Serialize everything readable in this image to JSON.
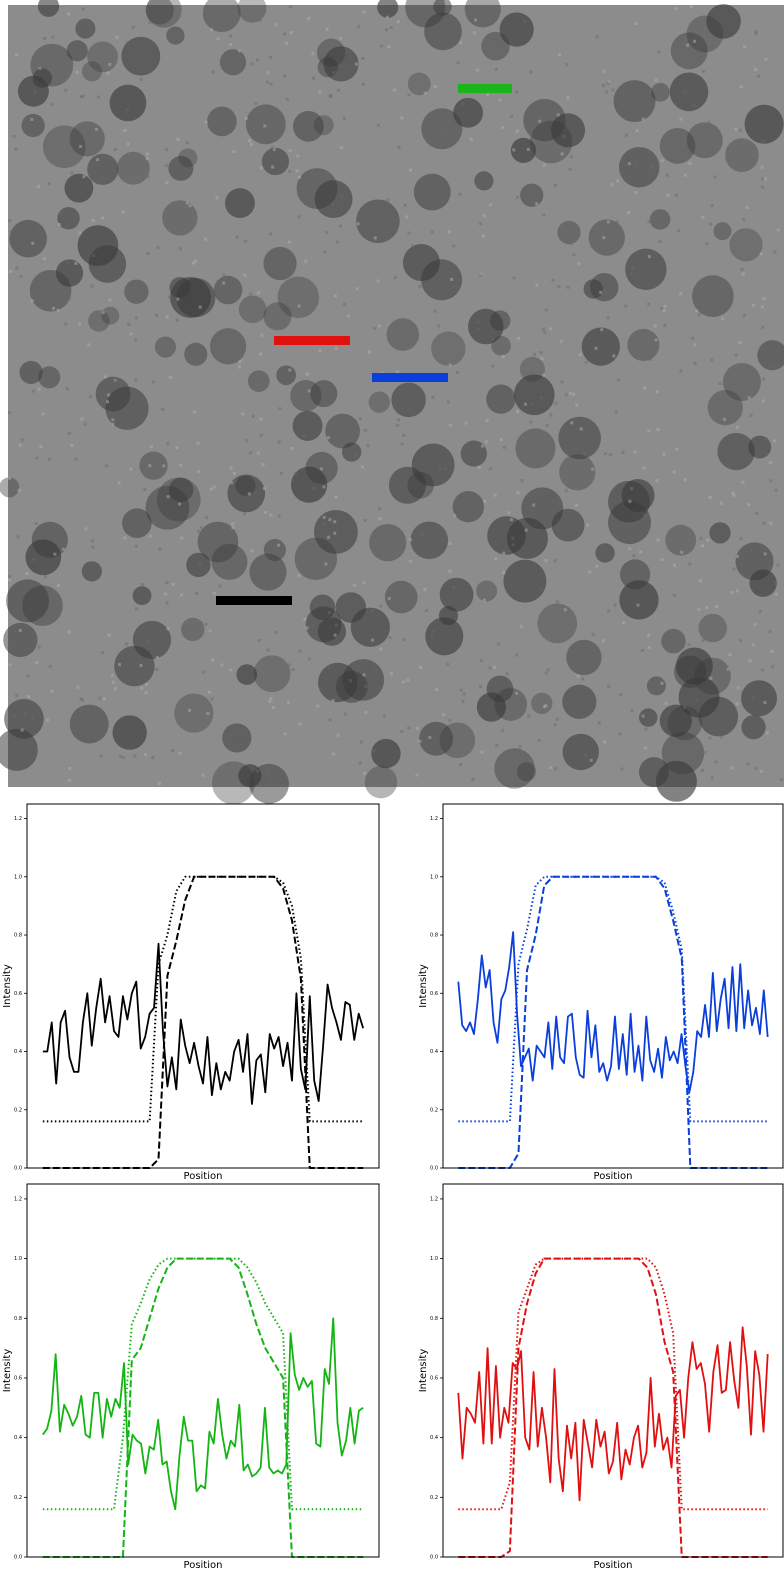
{
  "chart_data": [
    {
      "type": "line",
      "xlabel": "Position",
      "ylabel": "Intensity",
      "ylim": [
        0,
        1.25
      ],
      "yticks": [
        {
          "value": 0,
          "label": "0.0"
        },
        {
          "value": 0.2,
          "label": "0.2"
        },
        {
          "value": 0.4,
          "label": "0.4"
        },
        {
          "value": 0.6,
          "label": "0.6"
        },
        {
          "value": 0.8,
          "label": "0.8"
        },
        {
          "value": 1,
          "label": "1.0"
        },
        {
          "value": 1.2,
          "label": "1.2"
        }
      ],
      "series": [
        {
          "color": "#000000",
          "style": "solid",
          "values": [
            0.4,
            0.4,
            0.5,
            0.29,
            0.5,
            0.54,
            0.38,
            0.33,
            0.33,
            0.5,
            0.6,
            0.42,
            0.55,
            0.65,
            0.5,
            0.59,
            0.47,
            0.45,
            0.59,
            0.51,
            0.6,
            0.64,
            0.41,
            0.45,
            0.53,
            0.55,
            0.77,
            0.47,
            0.28,
            0.38,
            0.27,
            0.51,
            0.42,
            0.36,
            0.43,
            0.35,
            0.29,
            0.45,
            0.25,
            0.36,
            0.27,
            0.33,
            0.3,
            0.4,
            0.44,
            0.33,
            0.46,
            0.22,
            0.37,
            0.39,
            0.26,
            0.46,
            0.41,
            0.45,
            0.35,
            0.43,
            0.3,
            0.6,
            0.34,
            0.27,
            0.59,
            0.3,
            0.23,
            0.42,
            0.63,
            0.55,
            0.5,
            0.44,
            0.57,
            0.56,
            0.44,
            0.53,
            0.48
          ]
        },
        {
          "color": "#000000",
          "style": "dashed",
          "values": [
            0,
            0,
            0,
            0,
            0,
            0,
            0,
            0,
            0,
            0,
            0,
            0,
            0,
            0.03,
            0.66,
            0.78,
            0.92,
            1,
            1,
            1,
            1,
            1,
            1,
            1,
            1,
            1,
            1,
            0.96,
            0.85,
            0.65,
            0,
            0,
            0,
            0,
            0,
            0,
            0
          ]
        },
        {
          "color": "#000000",
          "style": "dotted",
          "values": [
            0.16,
            0.16,
            0.16,
            0.16,
            0.16,
            0.16,
            0.16,
            0.16,
            0.16,
            0.16,
            0.16,
            0.16,
            0.16,
            0.7,
            0.8,
            0.95,
            1,
            1,
            1,
            1,
            1,
            1,
            1,
            1,
            1,
            1,
            1,
            0.98,
            0.9,
            0.72,
            0.16,
            0.16,
            0.16,
            0.16,
            0.16,
            0.16,
            0.16
          ]
        }
      ]
    },
    {
      "type": "line",
      "xlabel": "Position",
      "ylabel": "Intensity",
      "ylim": [
        0,
        1.25
      ],
      "yticks": [
        {
          "value": 0,
          "label": "0.0"
        },
        {
          "value": 0.2,
          "label": "0.2"
        },
        {
          "value": 0.4,
          "label": "0.4"
        },
        {
          "value": 0.6,
          "label": "0.6"
        },
        {
          "value": 0.8,
          "label": "0.8"
        },
        {
          "value": 1,
          "label": "1.0"
        },
        {
          "value": 1.2,
          "label": "1.2"
        }
      ],
      "series": [
        {
          "color": "#0a3fdc",
          "style": "solid",
          "values": [
            0.64,
            0.49,
            0.47,
            0.5,
            0.46,
            0.58,
            0.73,
            0.62,
            0.68,
            0.5,
            0.43,
            0.58,
            0.61,
            0.69,
            0.81,
            0.53,
            0.35,
            0.38,
            0.41,
            0.3,
            0.42,
            0.4,
            0.38,
            0.5,
            0.34,
            0.52,
            0.38,
            0.36,
            0.52,
            0.53,
            0.38,
            0.32,
            0.31,
            0.54,
            0.38,
            0.49,
            0.33,
            0.36,
            0.3,
            0.35,
            0.52,
            0.34,
            0.46,
            0.32,
            0.53,
            0.33,
            0.42,
            0.3,
            0.52,
            0.37,
            0.33,
            0.41,
            0.31,
            0.45,
            0.37,
            0.4,
            0.36,
            0.46,
            0.35,
            0.26,
            0.33,
            0.47,
            0.45,
            0.56,
            0.45,
            0.67,
            0.47,
            0.58,
            0.65,
            0.48,
            0.69,
            0.47,
            0.7,
            0.48,
            0.61,
            0.49,
            0.55,
            0.46,
            0.61,
            0.45
          ]
        },
        {
          "color": "#0a3fdc",
          "style": "dashed",
          "values": [
            0,
            0,
            0,
            0,
            0,
            0,
            0,
            0.05,
            0.68,
            0.8,
            0.97,
            1,
            1,
            1,
            1,
            1,
            1,
            1,
            1,
            1,
            1,
            1,
            1,
            1,
            0.96,
            0.85,
            0.72,
            0,
            0,
            0,
            0,
            0,
            0,
            0,
            0,
            0,
            0
          ]
        },
        {
          "color": "#0a3fdc",
          "style": "dotted",
          "values": [
            0.16,
            0.16,
            0.16,
            0.16,
            0.16,
            0.16,
            0.16,
            0.7,
            0.82,
            0.97,
            1,
            1,
            1,
            1,
            1,
            1,
            1,
            1,
            1,
            1,
            1,
            1,
            1,
            1,
            0.98,
            0.88,
            0.75,
            0.16,
            0.16,
            0.16,
            0.16,
            0.16,
            0.16,
            0.16,
            0.16,
            0.16,
            0.16
          ]
        }
      ]
    },
    {
      "type": "line",
      "xlabel": "Position",
      "ylabel": "Intensity",
      "ylim": [
        0,
        1.25
      ],
      "yticks": [
        {
          "value": 0,
          "label": "0.0"
        },
        {
          "value": 0.2,
          "label": "0.2"
        },
        {
          "value": 0.4,
          "label": "0.4"
        },
        {
          "value": 0.6,
          "label": "0.6"
        },
        {
          "value": 0.8,
          "label": "0.8"
        },
        {
          "value": 1,
          "label": "1.0"
        },
        {
          "value": 1.2,
          "label": "1.2"
        }
      ],
      "series": [
        {
          "color": "#14b414",
          "style": "solid",
          "values": [
            0.41,
            0.43,
            0.49,
            0.68,
            0.42,
            0.51,
            0.48,
            0.44,
            0.47,
            0.54,
            0.41,
            0.4,
            0.55,
            0.55,
            0.4,
            0.53,
            0.47,
            0.53,
            0.5,
            0.65,
            0.31,
            0.41,
            0.39,
            0.38,
            0.28,
            0.37,
            0.36,
            0.46,
            0.31,
            0.32,
            0.22,
            0.16,
            0.34,
            0.47,
            0.39,
            0.39,
            0.22,
            0.24,
            0.23,
            0.42,
            0.38,
            0.53,
            0.41,
            0.33,
            0.39,
            0.37,
            0.51,
            0.29,
            0.31,
            0.27,
            0.28,
            0.3,
            0.5,
            0.3,
            0.28,
            0.29,
            0.28,
            0.31,
            0.75,
            0.61,
            0.56,
            0.6,
            0.57,
            0.59,
            0.38,
            0.37,
            0.63,
            0.58,
            0.8,
            0.45,
            0.34,
            0.39,
            0.5,
            0.38,
            0.49,
            0.5
          ]
        },
        {
          "color": "#14b414",
          "style": "dashed",
          "values": [
            0,
            0,
            0,
            0,
            0,
            0,
            0,
            0,
            0,
            0,
            0.66,
            0.7,
            0.8,
            0.9,
            0.97,
            1,
            1,
            1,
            1,
            1,
            1,
            1,
            0.97,
            0.88,
            0.78,
            0.7,
            0.65,
            0.6,
            0,
            0,
            0,
            0,
            0,
            0,
            0,
            0,
            0
          ]
        },
        {
          "color": "#14b414",
          "style": "dotted",
          "values": [
            0.16,
            0.16,
            0.16,
            0.16,
            0.16,
            0.16,
            0.16,
            0.16,
            0.16,
            0.4,
            0.78,
            0.85,
            0.93,
            0.98,
            1,
            1,
            1,
            1,
            1,
            1,
            1,
            1,
            1,
            0.97,
            0.92,
            0.85,
            0.8,
            0.75,
            0.16,
            0.16,
            0.16,
            0.16,
            0.16,
            0.16,
            0.16,
            0.16,
            0.16
          ]
        }
      ]
    },
    {
      "type": "line",
      "xlabel": "Position",
      "ylabel": "Intensity",
      "ylim": [
        0,
        1.25
      ],
      "yticks": [
        {
          "value": 0,
          "label": "0.0"
        },
        {
          "value": 0.2,
          "label": "0.2"
        },
        {
          "value": 0.4,
          "label": "0.4"
        },
        {
          "value": 0.6,
          "label": "0.6"
        },
        {
          "value": 0.8,
          "label": "0.8"
        },
        {
          "value": 1,
          "label": "1.0"
        },
        {
          "value": 1.2,
          "label": "1.2"
        }
      ],
      "series": [
        {
          "color": "#e01010",
          "style": "solid",
          "values": [
            0.55,
            0.33,
            0.5,
            0.48,
            0.45,
            0.62,
            0.38,
            0.7,
            0.38,
            0.64,
            0.4,
            0.5,
            0.45,
            0.65,
            0.63,
            0.69,
            0.4,
            0.36,
            0.62,
            0.37,
            0.5,
            0.4,
            0.25,
            0.63,
            0.33,
            0.22,
            0.44,
            0.33,
            0.45,
            0.19,
            0.46,
            0.38,
            0.3,
            0.46,
            0.37,
            0.42,
            0.28,
            0.32,
            0.45,
            0.26,
            0.36,
            0.31,
            0.4,
            0.44,
            0.3,
            0.35,
            0.6,
            0.37,
            0.48,
            0.36,
            0.4,
            0.3,
            0.54,
            0.56,
            0.4,
            0.6,
            0.72,
            0.63,
            0.65,
            0.58,
            0.42,
            0.62,
            0.71,
            0.55,
            0.56,
            0.72,
            0.59,
            0.5,
            0.77,
            0.64,
            0.41,
            0.69,
            0.61,
            0.42,
            0.68
          ]
        },
        {
          "color": "#e01010",
          "style": "dashed",
          "values": [
            0,
            0,
            0,
            0,
            0,
            0,
            0.02,
            0.7,
            0.85,
            0.95,
            1,
            1,
            1,
            1,
            1,
            1,
            1,
            1,
            1,
            1,
            1,
            1,
            0.97,
            0.88,
            0.72,
            0.62,
            0,
            0,
            0,
            0,
            0,
            0,
            0,
            0,
            0,
            0,
            0
          ]
        },
        {
          "color": "#e01010",
          "style": "dotted",
          "values": [
            0.16,
            0.16,
            0.16,
            0.16,
            0.16,
            0.16,
            0.25,
            0.82,
            0.9,
            0.98,
            1,
            1,
            1,
            1,
            1,
            1,
            1,
            1,
            1,
            1,
            1,
            1,
            1,
            0.97,
            0.88,
            0.75,
            0.16,
            0.16,
            0.16,
            0.16,
            0.16,
            0.16,
            0.16,
            0.16,
            0.16,
            0.16,
            0.16
          ]
        }
      ]
    }
  ]
}
